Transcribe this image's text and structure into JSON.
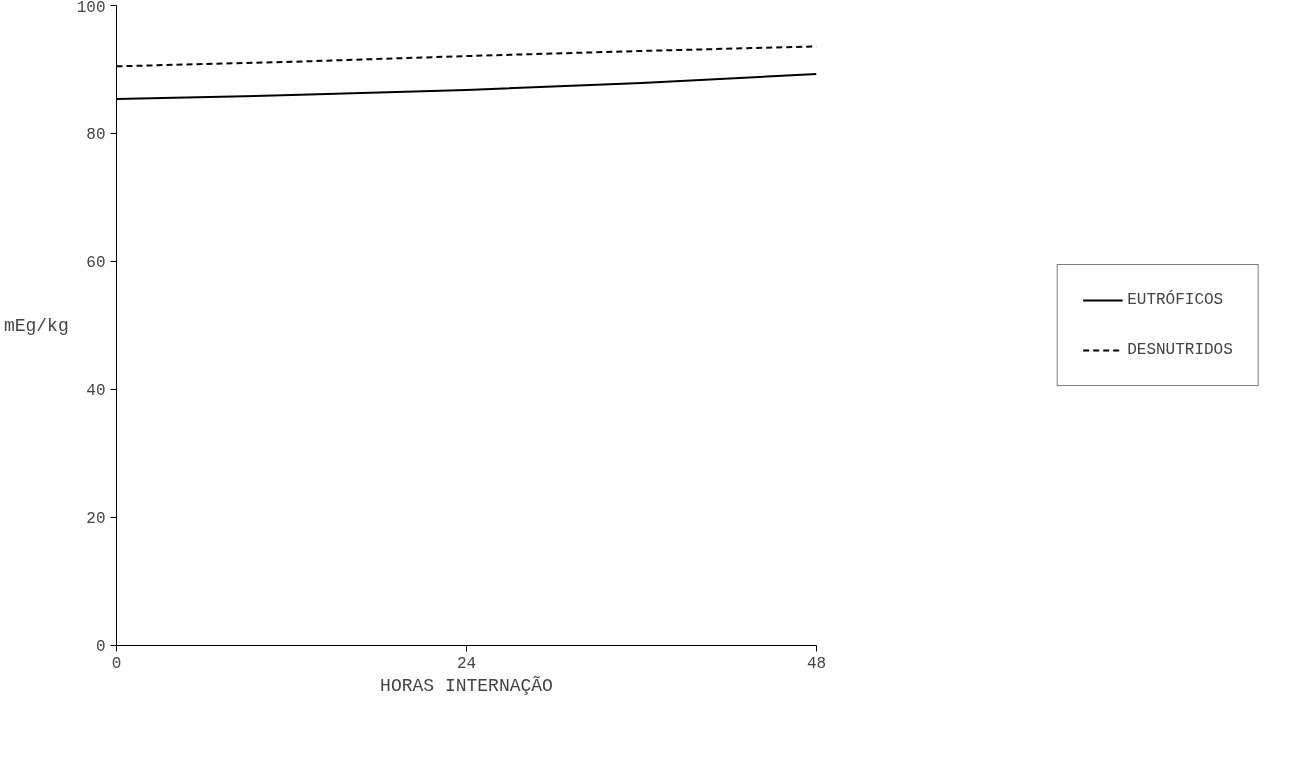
{
  "chart_data": {
    "type": "line",
    "xlabel": "HORAS INTERNAÇÃO",
    "ylabel": "mEg/kg",
    "x": [
      0,
      12,
      24,
      36,
      48
    ],
    "series": [
      {
        "name": "EUTRÓFICOS",
        "color": "#000000",
        "line_style": "solid",
        "values": [
          85.4,
          86.0,
          86.8,
          87.9,
          89.3
        ]
      },
      {
        "name": "DESNUTRIDOS",
        "color": "#000000",
        "line_style": "dashed",
        "values": [
          90.5,
          91.2,
          92.1,
          92.9,
          93.6
        ]
      }
    ],
    "xlim": [
      0,
      48
    ],
    "xticks": [
      0,
      24,
      48
    ],
    "ylim": [
      0,
      100
    ],
    "yticks": [
      0,
      20,
      40,
      60,
      80,
      100
    ],
    "grid": false,
    "legend": "right",
    "marker": "none"
  }
}
